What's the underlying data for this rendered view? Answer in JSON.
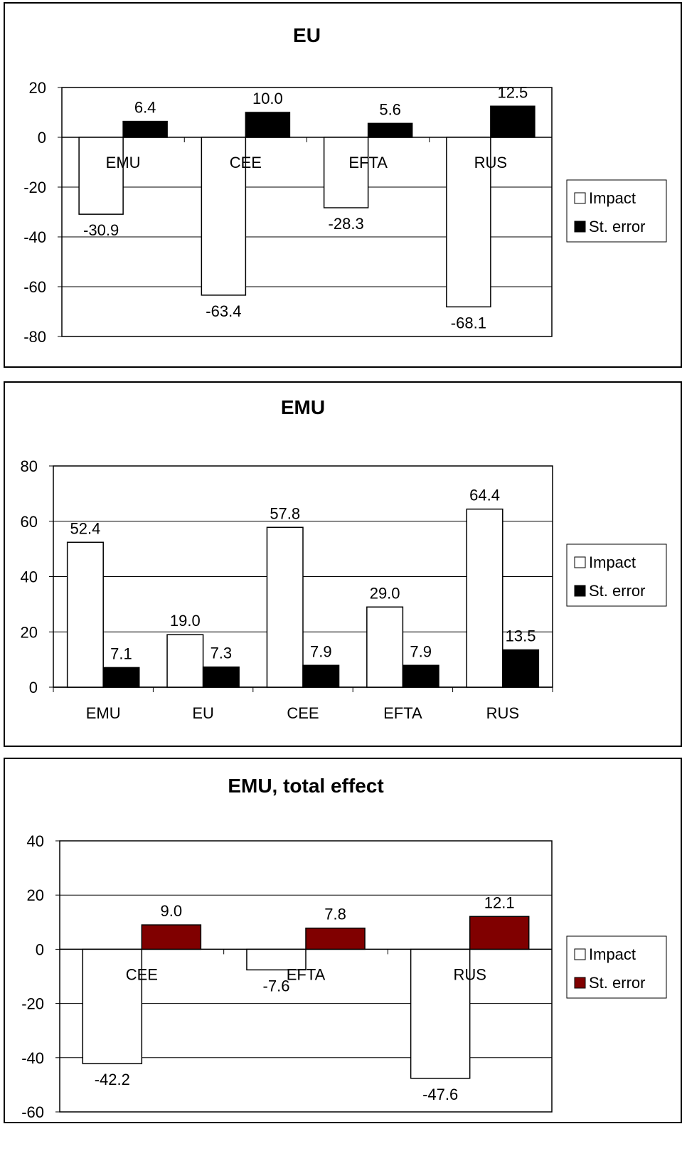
{
  "chart_data": [
    {
      "type": "bar",
      "title": "EU",
      "categories": [
        "EMU",
        "CEE",
        "EFTA",
        "RUS"
      ],
      "series": [
        {
          "name": "Impact",
          "values": [
            -30.9,
            -63.4,
            -28.3,
            -68.1
          ],
          "labels": [
            "-30.9",
            "-63.4",
            "-28.3",
            "-68.1"
          ],
          "color": "#ffffff"
        },
        {
          "name": "St. error",
          "values": [
            6.4,
            10.0,
            5.6,
            12.5
          ],
          "labels": [
            "6.4",
            "10.0",
            "5.6",
            "12.5"
          ],
          "color": "#000000"
        }
      ],
      "ylim": [
        -80,
        20
      ],
      "yticks": [
        20,
        0,
        -20,
        -40,
        -60,
        -80
      ],
      "grid": true,
      "legend": "right",
      "category_labels_position": "at zero line"
    },
    {
      "type": "bar",
      "title": "EMU",
      "categories": [
        "EMU",
        "EU",
        "CEE",
        "EFTA",
        "RUS"
      ],
      "series": [
        {
          "name": "Impact",
          "values": [
            52.4,
            19.0,
            57.8,
            29.0,
            64.4
          ],
          "labels": [
            "52.4",
            "19.0",
            "57.8",
            "29.0",
            "64.4"
          ],
          "color": "#ffffff"
        },
        {
          "name": "St. error",
          "values": [
            7.1,
            7.3,
            7.9,
            7.9,
            13.5
          ],
          "labels": [
            "7.1",
            "7.3",
            "7.9",
            "7.9",
            "13.5"
          ],
          "color": "#000000"
        }
      ],
      "ylim": [
        0,
        80
      ],
      "yticks": [
        80,
        60,
        40,
        20,
        0
      ],
      "grid": true,
      "legend": "right",
      "category_labels_position": "below axis"
    },
    {
      "type": "bar",
      "title": "EMU, total effect",
      "categories": [
        "CEE",
        "EFTA",
        "RUS"
      ],
      "series": [
        {
          "name": "Impact",
          "values": [
            -42.2,
            -7.6,
            -47.6
          ],
          "labels": [
            "-42.2",
            "-7.6",
            "-47.6"
          ],
          "color": "#ffffff"
        },
        {
          "name": "St. error",
          "values": [
            9.0,
            7.8,
            12.1
          ],
          "labels": [
            "9.0",
            "7.8",
            "12.1"
          ],
          "color": "#800000"
        }
      ],
      "ylim": [
        -60,
        40
      ],
      "yticks": [
        40,
        20,
        0,
        -20,
        -40,
        -60
      ],
      "grid": true,
      "legend": "right",
      "category_labels_position": "at zero line"
    }
  ]
}
